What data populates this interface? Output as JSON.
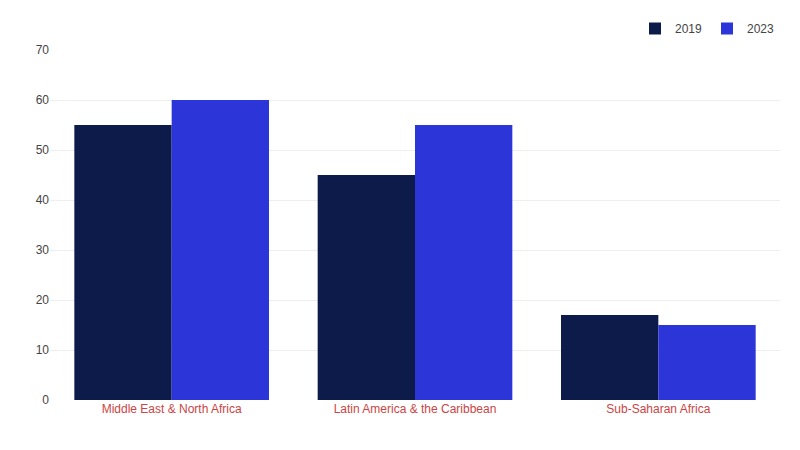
{
  "chart_data": {
    "type": "bar",
    "categories": [
      "Middle East & North Africa",
      "Latin America & the Caribbean",
      "Sub-Saharan Africa"
    ],
    "series": [
      {
        "name": "2019",
        "color": "#0d1b4b",
        "values": [
          55,
          45,
          17
        ]
      },
      {
        "name": "2023",
        "color": "#2b35d8",
        "values": [
          60,
          55,
          15
        ]
      }
    ],
    "ylim": [
      0,
      70
    ],
    "yticks": [
      0,
      10,
      20,
      30,
      40,
      50,
      60,
      70
    ],
    "grid": true,
    "legend": "upper right"
  }
}
